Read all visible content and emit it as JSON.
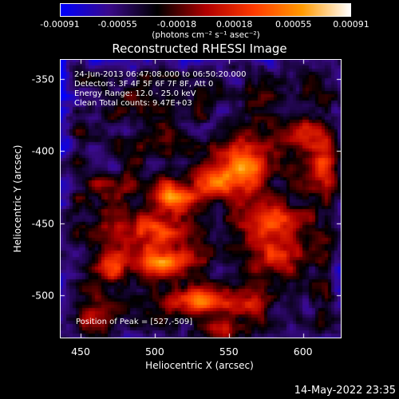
{
  "colorbar": {
    "tick_labels": [
      "-0.00091",
      "-0.00055",
      "-0.00018",
      "0.00018",
      "0.00055",
      "0.00091"
    ],
    "tick_values": [
      -0.00091,
      -0.00055,
      -0.00018,
      0.00018,
      0.00055,
      0.00091
    ],
    "min": -0.00091,
    "max": 0.00091,
    "unit_label": "(photons cm⁻² s⁻¹ asec⁻²)",
    "colors": [
      "#0000ff",
      "#3a0a8a",
      "#000000",
      "#b00000",
      "#ff3a00",
      "#ff9a00",
      "#ffffff"
    ]
  },
  "title": "Reconstructed RHESSI Image",
  "info": {
    "time_range": "24-Jun-2013 06:47:08.000 to 06:50:20.000",
    "detectors": "Detectors: 3F 4F 5F 6F 7F 8F, Att 0",
    "energy_range": "Energy Range: 12.0 - 25.0 keV",
    "method": "Clean      Total counts: 9.47E+03"
  },
  "peak_label": "Position of Peak = [527,-509]",
  "axes": {
    "xlabel": "Heliocentric X (arcsec)",
    "ylabel": "Heliocentric Y (arcsec)",
    "x_ticks": [
      "450",
      "500",
      "550",
      "600"
    ],
    "x_tick_values": [
      450,
      500,
      550,
      600
    ],
    "y_ticks": [
      "-350",
      "-400",
      "-450",
      "-500"
    ],
    "y_tick_values": [
      -350,
      -400,
      -450,
      -500
    ],
    "xlim": [
      436,
      626
    ],
    "ylim": [
      -530,
      -336
    ]
  },
  "datestamp": "14-May-2022 23:35",
  "colors": {
    "background": "#000000",
    "text": "#ffffff"
  }
}
